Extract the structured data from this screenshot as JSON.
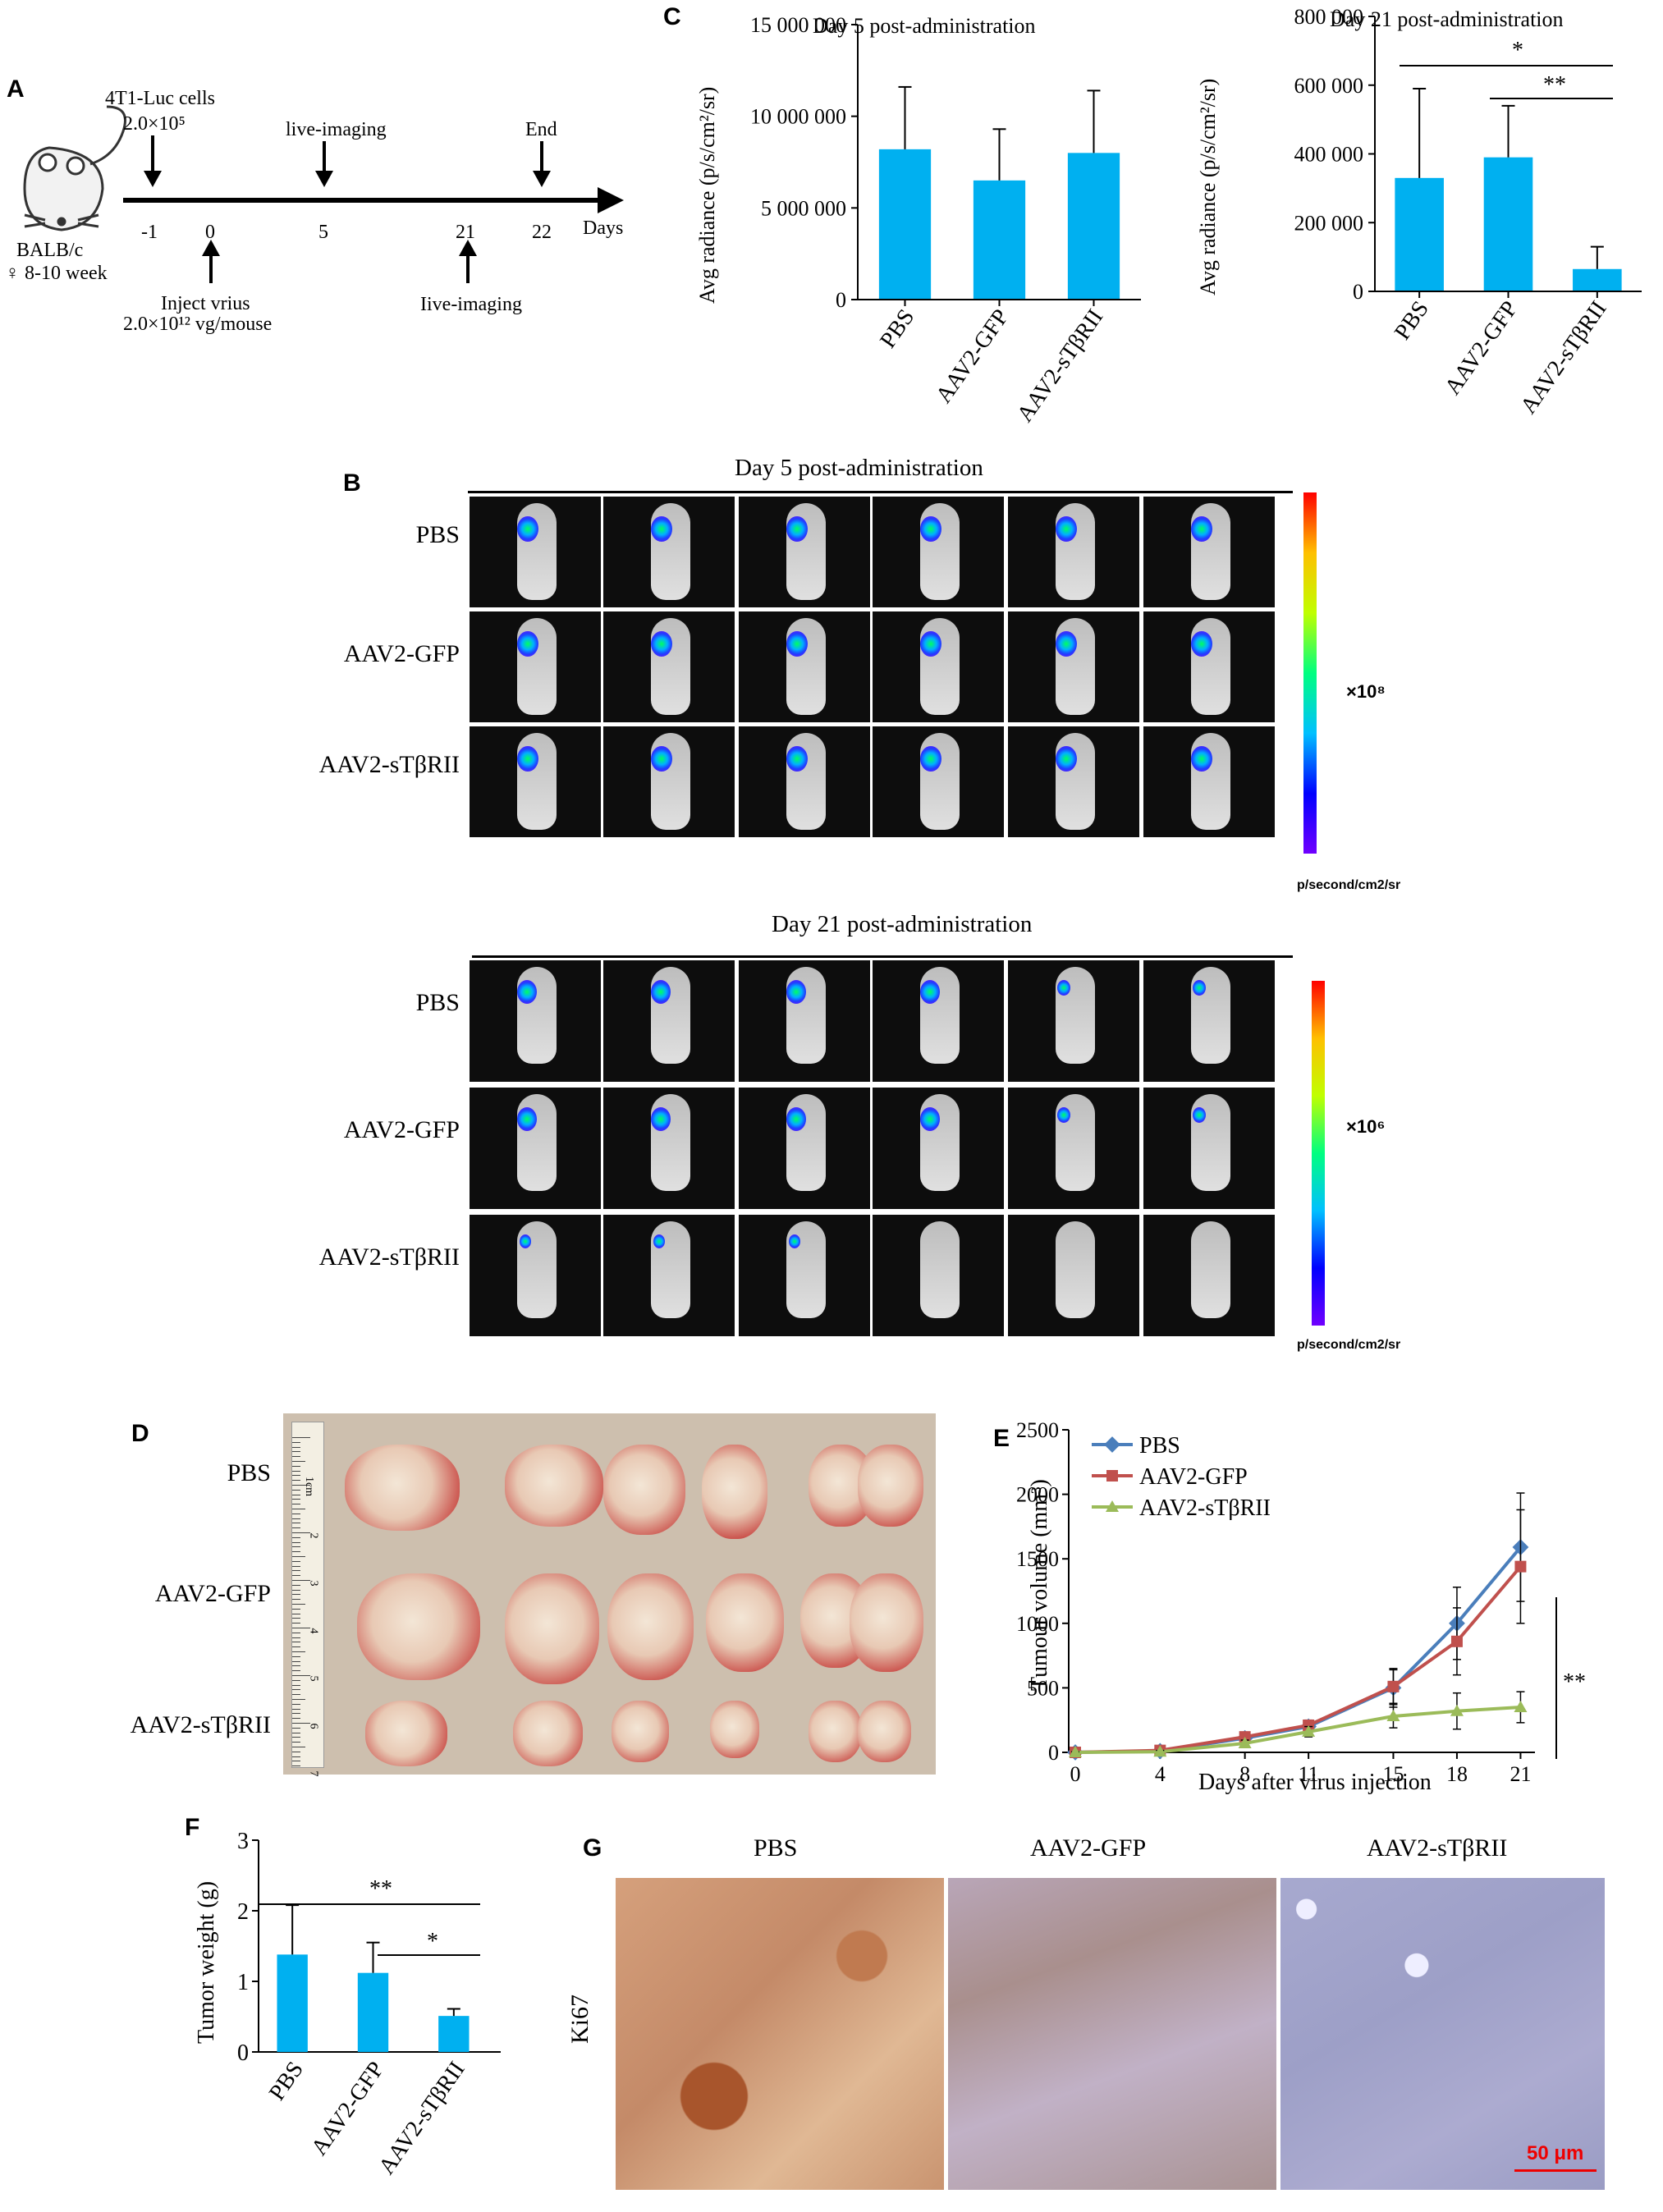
{
  "panel_labels": {
    "a": "A",
    "b": "B",
    "c": "C",
    "d": "D",
    "e": "E",
    "f": "F",
    "g": "G"
  },
  "timeline": {
    "mouse_strain": "BALB/c",
    "mouse_desc": "♀ 8-10 week",
    "cells_label": "4T1-Luc cells",
    "cells_dose": "2.0×10⁵",
    "live_imaging_top": "live-imaging",
    "end_label": "End",
    "live_imaging_bottom": "Iive-imaging",
    "inject_label": "Inject vrius",
    "inject_dose": "2.0×10¹² vg/mouse",
    "axis_label": "Days",
    "ticks": [
      "-1",
      "0",
      "5",
      "21",
      "22"
    ]
  },
  "panel_c": {
    "left_title": "Day 5 post-administration",
    "right_title": "Day 21 post-administration",
    "ylabel": "Avg radiance (p/s/cm²/sr)",
    "left_ticks": [
      "15 000 000",
      "10 000 000",
      "5 000 000",
      "0"
    ],
    "right_ticks": [
      "800 000",
      "600 000",
      "400 000",
      "200 000",
      "0"
    ],
    "sig_star": "*",
    "sig_double": "**"
  },
  "panel_b": {
    "day5_title": "Day 5 post-administration",
    "day21_title": "Day 21 post-administration",
    "rows": [
      "PBS",
      "AAV2-GFP",
      "AAV2-sTβRII"
    ],
    "scale_day5": "×10⁸",
    "scale_day21": "×10⁶",
    "unit": "p/second/cm2/sr"
  },
  "panel_d": {
    "rows": [
      "PBS",
      "AAV2-GFP",
      "AAV2-sTβRII"
    ],
    "ruler_unit": "1cm",
    "ruler_ticks": [
      "2",
      "3",
      "4",
      "5",
      "6",
      "7"
    ]
  },
  "panel_e": {
    "ylabel": "Tumour volume (mm³)",
    "xlabel": "Days after virus injection",
    "sig": "**"
  },
  "panel_f": {
    "ylabel": "Tumor weight (g)",
    "sig_top": "**",
    "sig_bottom": "*"
  },
  "panel_g": {
    "columns": [
      "PBS",
      "AAV2-GFP",
      "AAV2-sTβRII"
    ],
    "row_label": "Ki67",
    "scale_bar": "50 μm"
  },
  "colors": {
    "bar": "#00b0f0",
    "pbs": "#4a7ebb",
    "gfp": "#c0504d",
    "stbrii": "#9bbb59"
  },
  "chart_data": [
    {
      "type": "bar",
      "title": "Day 5 post-administration",
      "ylabel": "Avg radiance (p/s/cm²/sr)",
      "categories": [
        "PBS",
        "AAV2-GFP",
        "AAV2-sTβRII"
      ],
      "values": [
        8200000,
        6500000,
        8000000
      ],
      "errors": [
        3400000,
        2800000,
        3400000
      ],
      "ylim": [
        0,
        15000000
      ]
    },
    {
      "type": "bar",
      "title": "Day 21 post-administration",
      "ylabel": "Avg radiance (p/s/cm²/sr)",
      "categories": [
        "PBS",
        "AAV2-GFP",
        "AAV2-sTβRII"
      ],
      "values": [
        330000,
        390000,
        65000
      ],
      "errors": [
        260000,
        150000,
        65000
      ],
      "ylim": [
        0,
        800000
      ]
    },
    {
      "type": "line",
      "xlabel": "Days after virus injection",
      "ylabel": "Tumour volume (mm³)",
      "x": [
        0,
        4,
        8,
        11,
        15,
        18,
        21
      ],
      "series": [
        {
          "name": "PBS",
          "values": [
            0,
            10,
            110,
            200,
            500,
            1000,
            1590
          ],
          "errors": [
            10,
            15,
            30,
            40,
            150,
            280,
            420
          ]
        },
        {
          "name": "AAV2-GFP",
          "values": [
            0,
            15,
            120,
            210,
            510,
            860,
            1440
          ],
          "errors": [
            10,
            15,
            30,
            40,
            130,
            260,
            440
          ]
        },
        {
          "name": "AAV2-sTβRII",
          "values": [
            0,
            5,
            70,
            160,
            280,
            320,
            350
          ],
          "errors": [
            5,
            10,
            25,
            40,
            90,
            140,
            120
          ]
        }
      ],
      "xticks": [
        "0",
        "4",
        "8",
        "11",
        "15",
        "18",
        "21"
      ],
      "yticks": [
        "0",
        "500",
        "1000",
        "1500",
        "2000",
        "2500"
      ],
      "ylim": [
        0,
        2500
      ],
      "legend": "top-left"
    },
    {
      "type": "bar",
      "ylabel": "Tumor weight (g)",
      "categories": [
        "PBS",
        "AAV2-GFP",
        "AAV2-sTβRII"
      ],
      "values": [
        1.38,
        1.12,
        0.51
      ],
      "errors": [
        0.7,
        0.43,
        0.1
      ],
      "yticks": [
        "0",
        "1",
        "2",
        "3"
      ],
      "ylim": [
        0,
        3
      ]
    }
  ]
}
